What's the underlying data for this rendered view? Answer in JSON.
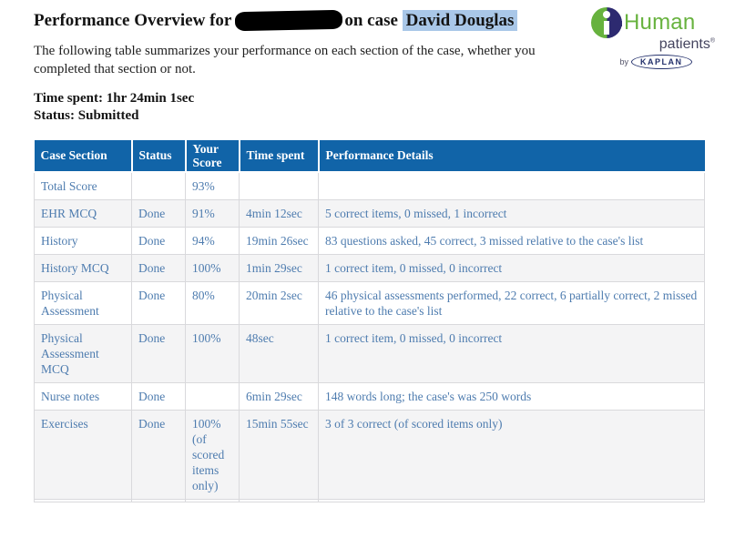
{
  "page": {
    "title_prefix": "Performance Overview for",
    "title_suffix": "on case",
    "case_name": "David Douglas",
    "intro": "The following table summarizes your performance on each section of the case, whether you completed that section or not.",
    "time_spent_label": "Time spent:",
    "time_spent_value": "1hr 24min 1sec",
    "status_label": "Status:",
    "status_value": "Submitted"
  },
  "logo": {
    "human": "Human",
    "patients": "patients",
    "registered_mark": "®",
    "by": "by",
    "kaplan": "KAPLAN",
    "icon": "ihuman-circle-icon",
    "green": "#67B23E",
    "navy": "#2D2A70"
  },
  "colors": {
    "table_header_bg": "#1164A8",
    "table_header_text": "#FFFFFF",
    "cell_text": "#4E7CAF",
    "row_alt_bg": "#F4F4F5",
    "case_highlight": "#A9C7E8",
    "border": "#D9D9DC"
  },
  "table": {
    "headers": [
      "Case Section",
      "Status",
      "Your Score",
      "Time spent",
      "Performance Details"
    ],
    "rows": [
      {
        "section": "Total Score",
        "status": "",
        "score": "93%",
        "time": "",
        "details": ""
      },
      {
        "section": "EHR MCQ",
        "status": "Done",
        "score": "91%",
        "time": "4min 12sec",
        "details": "5 correct items, 0 missed, 1 incorrect"
      },
      {
        "section": "History",
        "status": "Done",
        "score": "94%",
        "time": "19min 26sec",
        "details": "83 questions asked, 45 correct, 3 missed relative to the case's list"
      },
      {
        "section": "History MCQ",
        "status": "Done",
        "score": "100%",
        "time": "1min 29sec",
        "details": "1 correct item, 0 missed, 0 incorrect"
      },
      {
        "section": "Physical Assessment",
        "status": "Done",
        "score": "80%",
        "time": "20min 2sec",
        "details": "46 physical assessments performed, 22 correct, 6 partially correct, 2 missed relative to the case's list"
      },
      {
        "section": "Physical Assessment MCQ",
        "status": "Done",
        "score": "100%",
        "time": "48sec",
        "details": "1 correct item, 0 missed, 0 incorrect"
      },
      {
        "section": "Nurse notes",
        "status": "Done",
        "score": "",
        "time": "6min 29sec",
        "details": "148 words long; the case's was 250 words"
      },
      {
        "section": "Exercises",
        "status": "Done",
        "score": "100% (of scored items only)",
        "time": "15min 55sec",
        "details": "3 of 3 correct (of scored items only)"
      }
    ]
  }
}
